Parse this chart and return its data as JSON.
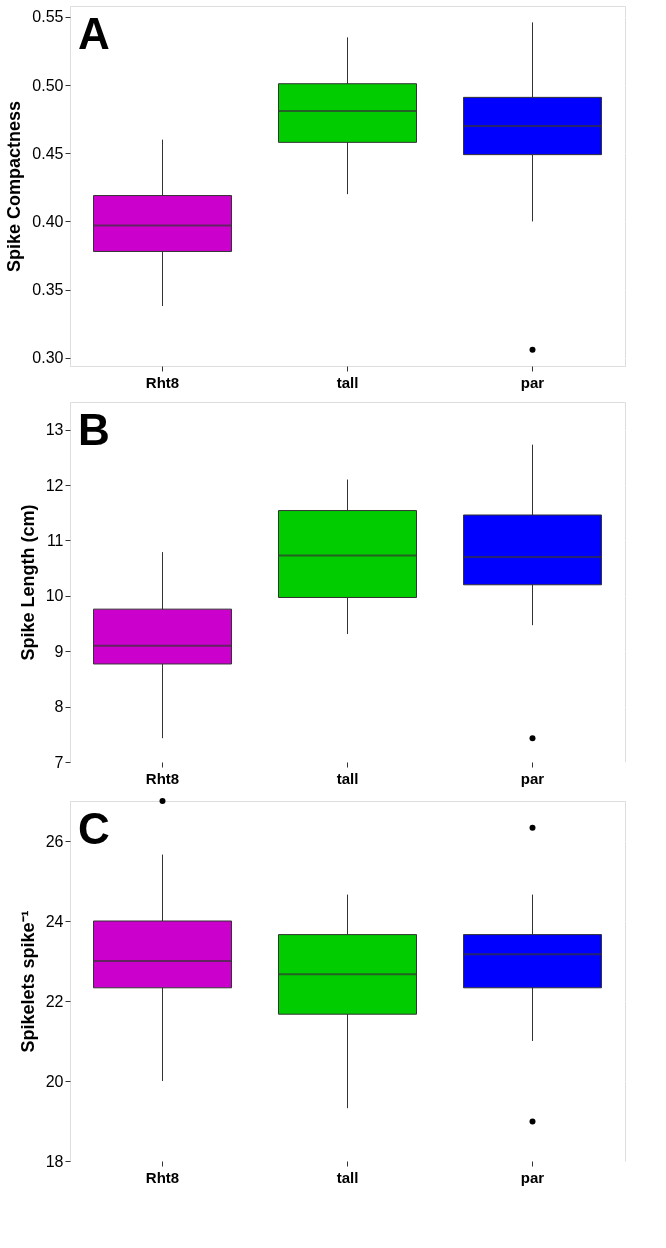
{
  "chart_data": [
    {
      "type": "box",
      "title": "A",
      "ylabel": "Spike Compactness",
      "categories": [
        "Rht8",
        "tall",
        "par"
      ],
      "colors": [
        "#cc00cc",
        "#00cc00",
        "#0000ff"
      ],
      "boxes": [
        {
          "low": 0.338,
          "q1": 0.378,
          "median": 0.397,
          "q3": 0.419,
          "high": 0.46
        },
        {
          "low": 0.42,
          "q1": 0.458,
          "median": 0.481,
          "q3": 0.501,
          "high": 0.535
        },
        {
          "low": 0.4,
          "q1": 0.449,
          "median": 0.47,
          "q3": 0.491,
          "high": 0.546,
          "outliers": [
            0.306
          ]
        }
      ],
      "ylim": [
        0.294,
        0.558
      ],
      "yticks": [
        {
          "value": 0.3,
          "label": "0.30"
        },
        0.35,
        {
          "value": 0.4,
          "label": "0.40"
        },
        0.45,
        {
          "value": 0.5,
          "label": "0.50"
        },
        0.55
      ],
      "grid": true
    },
    {
      "type": "box",
      "title": "B",
      "ylabel": "Spike Length (cm)",
      "categories": [
        "Rht8",
        "tall",
        "par"
      ],
      "colors": [
        "#cc00cc",
        "#00cc00",
        "#0000ff"
      ],
      "boxes": [
        {
          "low": 7.43,
          "q1": 8.77,
          "median": 9.1,
          "q3": 9.76,
          "high": 10.79
        },
        {
          "low": 9.31,
          "q1": 9.97,
          "median": 10.73,
          "q3": 11.54,
          "high": 12.1
        },
        {
          "low": 9.47,
          "q1": 10.2,
          "median": 10.7,
          "q3": 11.46,
          "high": 12.73,
          "outliers": [
            7.43
          ]
        }
      ],
      "ylim": [
        7,
        13.5
      ],
      "yticks": [
        7,
        8,
        9,
        10,
        11,
        12,
        13
      ],
      "grid": true
    },
    {
      "type": "box",
      "title": "C",
      "ylabel": "Spikelets spike⁻¹",
      "categories": [
        "Rht8",
        "tall",
        "par"
      ],
      "colors": [
        "#cc00cc",
        "#00cc00",
        "#0000ff"
      ],
      "boxes": [
        {
          "low": 20.0,
          "q1": 22.33,
          "median": 23.0,
          "q3": 24.0,
          "high": 25.66,
          "outliers": [
            27.0
          ]
        },
        {
          "low": 19.32,
          "q1": 21.67,
          "median": 22.67,
          "q3": 23.66,
          "high": 24.66
        },
        {
          "low": 21.0,
          "q1": 22.33,
          "median": 23.17,
          "q3": 23.66,
          "high": 24.66,
          "outliers": [
            26.33,
            18.99
          ]
        }
      ],
      "ylim": [
        18,
        27
      ],
      "yticks": [
        18,
        20,
        22,
        24,
        26
      ],
      "grid": true
    }
  ]
}
